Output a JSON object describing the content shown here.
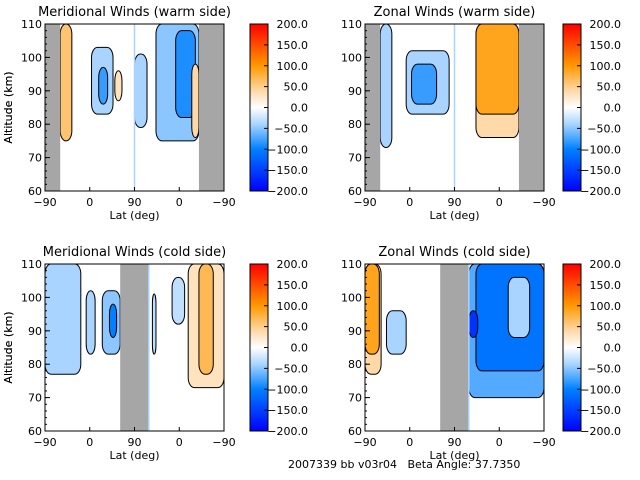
{
  "footer": {
    "run_id": "2007339 bb v03r04",
    "beta_label": "Beta Angle:",
    "beta_value": "37.7350"
  },
  "chart_data": [
    {
      "type": "heatmap",
      "title": "Meridional Winds (warm side)",
      "xlabel": "Lat (deg)",
      "ylabel": "Altitude (km)",
      "xticks": [
        "-90",
        "0",
        "90",
        "0",
        "-90"
      ],
      "yticks": [
        "60",
        "70",
        "80",
        "90",
        "100",
        "110"
      ],
      "ylim": [
        60,
        110
      ],
      "colorbar": {
        "ticks": [
          "200.0",
          "150.0",
          "100.0",
          "50.0",
          "0.0",
          "-50.0",
          "-100.0",
          "-150.0",
          "-200.0"
        ],
        "range": [
          -200,
          200
        ]
      },
      "no_data_bands": [
        [
          0.0,
          0.085
        ],
        [
          0.86,
          1.0
        ]
      ],
      "divider": 0.5,
      "regions": [
        {
          "x": [
            0.085,
            0.15
          ],
          "y": [
            75,
            110
          ],
          "value": 60
        },
        {
          "x": [
            0.26,
            0.38
          ],
          "y": [
            83,
            103
          ],
          "value": -40
        },
        {
          "x": [
            0.3,
            0.35
          ],
          "y": [
            86,
            97
          ],
          "value": -80
        },
        {
          "x": [
            0.39,
            0.43
          ],
          "y": [
            87,
            96
          ],
          "value": 30
        },
        {
          "x": [
            0.5,
            0.57
          ],
          "y": [
            79,
            101
          ],
          "value": -40
        },
        {
          "x": [
            0.62,
            0.86
          ],
          "y": [
            75,
            110
          ],
          "value": -50
        },
        {
          "x": [
            0.73,
            0.84
          ],
          "y": [
            82,
            108
          ],
          "value": -90
        },
        {
          "x": [
            0.82,
            0.86
          ],
          "y": [
            76,
            98
          ],
          "value": 40
        }
      ]
    },
    {
      "type": "heatmap",
      "title": "Zonal Winds (warm side)",
      "xlabel": "Lat (deg)",
      "ylabel": "Altitude (km)",
      "xticks": [
        "-90",
        "0",
        "90",
        "0",
        "-90"
      ],
      "yticks": [
        "60",
        "70",
        "80",
        "90",
        "100",
        "110"
      ],
      "ylim": [
        60,
        110
      ],
      "colorbar": {
        "ticks": [
          "200.0",
          "150.0",
          "100.0",
          "50.0",
          "0.0",
          "-50.0",
          "-100.0",
          "-150.0",
          "-200.0"
        ],
        "range": [
          -200,
          200
        ]
      },
      "no_data_bands": [
        [
          0.0,
          0.085
        ],
        [
          0.86,
          1.0
        ]
      ],
      "divider": 0.5,
      "regions": [
        {
          "x": [
            0.085,
            0.15
          ],
          "y": [
            73,
            110
          ],
          "value": -40
        },
        {
          "x": [
            0.23,
            0.47
          ],
          "y": [
            83,
            102
          ],
          "value": -40
        },
        {
          "x": [
            0.26,
            0.4
          ],
          "y": [
            86,
            98
          ],
          "value": -80
        },
        {
          "x": [
            0.62,
            0.86
          ],
          "y": [
            76,
            110
          ],
          "value": 40
        },
        {
          "x": [
            0.62,
            0.86
          ],
          "y": [
            83,
            110
          ],
          "value": 90
        }
      ]
    },
    {
      "type": "heatmap",
      "title": "Meridional Winds (cold side)",
      "xlabel": "Lat (deg)",
      "ylabel": "Altitude (km)",
      "xticks": [
        "-90",
        "0",
        "90",
        "0",
        "-90"
      ],
      "yticks": [
        "60",
        "70",
        "80",
        "90",
        "100",
        "110"
      ],
      "ylim": [
        60,
        110
      ],
      "colorbar": {
        "ticks": [
          "200.0",
          "150.0",
          "100.0",
          "50.0",
          "0.0",
          "-50.0",
          "-100.0",
          "-150.0",
          "-200.0"
        ],
        "range": [
          -200,
          200
        ]
      },
      "no_data_bands": [
        [
          0.42,
          0.58
        ]
      ],
      "divider": 0.58,
      "regions": [
        {
          "x": [
            0.0,
            0.2
          ],
          "y": [
            77,
            110
          ],
          "value": -40
        },
        {
          "x": [
            0.23,
            0.28
          ],
          "y": [
            83,
            102
          ],
          "value": -40
        },
        {
          "x": [
            0.32,
            0.42
          ],
          "y": [
            83,
            102
          ],
          "value": -50
        },
        {
          "x": [
            0.36,
            0.4
          ],
          "y": [
            88,
            98
          ],
          "value": -100
        },
        {
          "x": [
            0.6,
            0.62
          ],
          "y": [
            83,
            101
          ],
          "value": -30
        },
        {
          "x": [
            0.71,
            0.78
          ],
          "y": [
            92,
            106
          ],
          "value": -30
        },
        {
          "x": [
            0.8,
            1.0
          ],
          "y": [
            73,
            110
          ],
          "value": 30
        },
        {
          "x": [
            0.86,
            0.94
          ],
          "y": [
            77,
            110
          ],
          "value": 70
        }
      ]
    },
    {
      "type": "heatmap",
      "title": "Zonal Winds (cold side)",
      "xlabel": "Lat (deg)",
      "ylabel": "Altitude (km)",
      "xticks": [
        "-90",
        "0",
        "90",
        "0",
        "-90"
      ],
      "yticks": [
        "60",
        "70",
        "80",
        "90",
        "100",
        "110"
      ],
      "ylim": [
        60,
        110
      ],
      "colorbar": {
        "ticks": [
          "200.0",
          "150.0",
          "100.0",
          "50.0",
          "0.0",
          "-50.0",
          "-100.0",
          "-150.0",
          "-200.0"
        ],
        "range": [
          -200,
          200
        ]
      },
      "no_data_bands": [
        [
          0.42,
          0.58
        ]
      ],
      "divider": 0.58,
      "regions": [
        {
          "x": [
            0.0,
            0.09
          ],
          "y": [
            77,
            110
          ],
          "value": 40
        },
        {
          "x": [
            0.0,
            0.08
          ],
          "y": [
            83,
            110
          ],
          "value": 90
        },
        {
          "x": [
            0.12,
            0.23
          ],
          "y": [
            83,
            96
          ],
          "value": -40
        },
        {
          "x": [
            0.58,
            1.0
          ],
          "y": [
            70,
            110
          ],
          "value": -70
        },
        {
          "x": [
            0.62,
            1.0
          ],
          "y": [
            78,
            110
          ],
          "value": -110
        },
        {
          "x": [
            0.8,
            0.92
          ],
          "y": [
            88,
            106
          ],
          "value": -40
        },
        {
          "x": [
            0.58,
            0.63
          ],
          "y": [
            88,
            96
          ],
          "value": -160
        }
      ]
    }
  ]
}
